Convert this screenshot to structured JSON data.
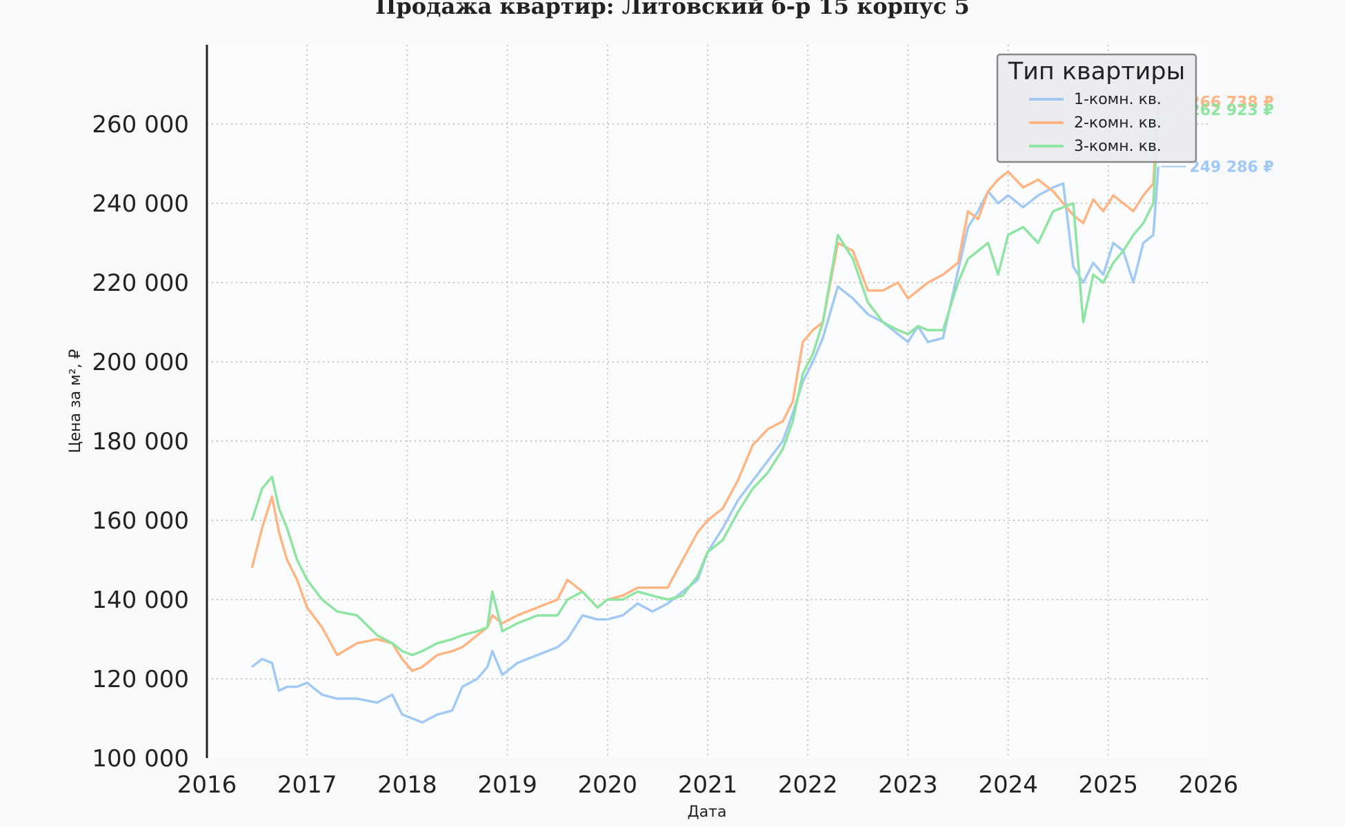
{
  "chart_data": {
    "type": "line",
    "title": "Продажа квартир: Литовский б-р 15 корпус 5",
    "xlabel": "Дата",
    "ylabel": "Цена за м², ₽",
    "xlim": [
      2016,
      2026
    ],
    "ylim": [
      100000,
      280000
    ],
    "x_ticks": [
      "2016",
      "2017",
      "2018",
      "2019",
      "2020",
      "2021",
      "2022",
      "2023",
      "2024",
      "2025",
      "2026"
    ],
    "y_ticks": [
      "100 000",
      "120 000",
      "140 000",
      "160 000",
      "180 000",
      "200 000",
      "220 000",
      "240 000",
      "260 000"
    ],
    "grid": true,
    "legend": {
      "title": "Тип квартиры",
      "placement": "top-right"
    },
    "series": [
      {
        "name": "1-комн. кв.",
        "color": "#a1c9f4",
        "end_label": "249 286 ₽",
        "x": [
          2016.45,
          2016.55,
          2016.65,
          2016.72,
          2016.8,
          2016.9,
          2017.0,
          2017.15,
          2017.3,
          2017.5,
          2017.7,
          2017.85,
          2017.95,
          2018.05,
          2018.15,
          2018.3,
          2018.45,
          2018.55,
          2018.7,
          2018.8,
          2018.85,
          2018.95,
          2019.1,
          2019.3,
          2019.5,
          2019.6,
          2019.75,
          2019.9,
          2020.0,
          2020.15,
          2020.3,
          2020.45,
          2020.6,
          2020.75,
          2020.9,
          2021.0,
          2021.15,
          2021.3,
          2021.45,
          2021.6,
          2021.75,
          2021.85,
          2021.95,
          2022.05,
          2022.15,
          2022.3,
          2022.45,
          2022.6,
          2022.75,
          2022.9,
          2023.0,
          2023.1,
          2023.2,
          2023.35,
          2023.5,
          2023.6,
          2023.7,
          2023.8,
          2023.9,
          2024.0,
          2024.15,
          2024.3,
          2024.45,
          2024.55,
          2024.65,
          2024.75,
          2024.85,
          2024.95,
          2025.05,
          2025.15,
          2025.25,
          2025.35,
          2025.45,
          2025.5
        ],
        "y": [
          123000,
          125000,
          124000,
          117000,
          118000,
          118000,
          119000,
          116000,
          115000,
          115000,
          114000,
          116000,
          111000,
          110000,
          109000,
          111000,
          112000,
          118000,
          120000,
          123000,
          127000,
          121000,
          124000,
          126000,
          128000,
          130000,
          136000,
          135000,
          135000,
          136000,
          139000,
          137000,
          139000,
          142000,
          145000,
          152000,
          158000,
          165000,
          170000,
          175000,
          180000,
          187000,
          195000,
          200000,
          206000,
          219000,
          216000,
          212000,
          210000,
          207000,
          205000,
          209000,
          205000,
          206000,
          223000,
          234000,
          238000,
          243000,
          240000,
          242000,
          239000,
          242000,
          244000,
          245000,
          224000,
          220000,
          225000,
          222000,
          230000,
          228000,
          220000,
          230000,
          232000,
          249286
        ]
      },
      {
        "name": "2-комн. кв.",
        "color": "#ffb482",
        "end_label": "266 738 ₽",
        "x": [
          2016.45,
          2016.55,
          2016.65,
          2016.72,
          2016.8,
          2016.9,
          2017.0,
          2017.15,
          2017.3,
          2017.5,
          2017.7,
          2017.85,
          2017.95,
          2018.05,
          2018.15,
          2018.3,
          2018.45,
          2018.55,
          2018.7,
          2018.8,
          2018.85,
          2018.95,
          2019.1,
          2019.3,
          2019.5,
          2019.6,
          2019.75,
          2019.9,
          2020.0,
          2020.15,
          2020.3,
          2020.45,
          2020.6,
          2020.75,
          2020.9,
          2021.0,
          2021.15,
          2021.3,
          2021.45,
          2021.6,
          2021.75,
          2021.85,
          2021.95,
          2022.05,
          2022.15,
          2022.3,
          2022.45,
          2022.6,
          2022.75,
          2022.9,
          2023.0,
          2023.1,
          2023.2,
          2023.35,
          2023.5,
          2023.6,
          2023.7,
          2023.8,
          2023.9,
          2024.0,
          2024.15,
          2024.3,
          2024.45,
          2024.55,
          2024.65,
          2024.75,
          2024.85,
          2024.95,
          2025.05,
          2025.15,
          2025.25,
          2025.35,
          2025.45,
          2025.5
        ],
        "y": [
          148000,
          158000,
          166000,
          157000,
          150000,
          145000,
          138000,
          133000,
          126000,
          129000,
          130000,
          129000,
          125000,
          122000,
          123000,
          126000,
          127000,
          128000,
          131000,
          133000,
          136000,
          134000,
          136000,
          138000,
          140000,
          145000,
          142000,
          138000,
          140000,
          141000,
          143000,
          143000,
          143000,
          150000,
          157000,
          160000,
          163000,
          170000,
          179000,
          183000,
          185000,
          190000,
          205000,
          208000,
          210000,
          230000,
          228000,
          218000,
          218000,
          220000,
          216000,
          218000,
          220000,
          222000,
          225000,
          238000,
          236000,
          243000,
          246000,
          248000,
          244000,
          246000,
          243000,
          240000,
          237000,
          235000,
          241000,
          238000,
          242000,
          240000,
          238000,
          242000,
          245000,
          266738
        ]
      },
      {
        "name": "3-комн. кв.",
        "color": "#8de5a1",
        "end_label": "262 923 ₽",
        "x": [
          2016.45,
          2016.55,
          2016.65,
          2016.72,
          2016.8,
          2016.9,
          2017.0,
          2017.15,
          2017.3,
          2017.5,
          2017.7,
          2017.85,
          2017.95,
          2018.05,
          2018.15,
          2018.3,
          2018.45,
          2018.55,
          2018.7,
          2018.8,
          2018.85,
          2018.95,
          2019.1,
          2019.3,
          2019.5,
          2019.6,
          2019.75,
          2019.9,
          2020.0,
          2020.15,
          2020.3,
          2020.45,
          2020.6,
          2020.75,
          2020.9,
          2021.0,
          2021.15,
          2021.3,
          2021.45,
          2021.6,
          2021.75,
          2021.85,
          2021.95,
          2022.05,
          2022.15,
          2022.3,
          2022.45,
          2022.6,
          2022.75,
          2022.9,
          2023.0,
          2023.1,
          2023.2,
          2023.35,
          2023.5,
          2023.6,
          2023.7,
          2023.8,
          2023.9,
          2024.0,
          2024.15,
          2024.3,
          2024.45,
          2024.55,
          2024.65,
          2024.75,
          2024.85,
          2024.95,
          2025.05,
          2025.15,
          2025.25,
          2025.35,
          2025.45,
          2025.5
        ],
        "y": [
          160000,
          168000,
          171000,
          163000,
          158000,
          150000,
          145000,
          140000,
          137000,
          136000,
          131000,
          129000,
          127000,
          126000,
          127000,
          129000,
          130000,
          131000,
          132000,
          133000,
          142000,
          132000,
          134000,
          136000,
          136000,
          140000,
          142000,
          138000,
          140000,
          140000,
          142000,
          141000,
          140000,
          141000,
          146000,
          152000,
          155000,
          162000,
          168000,
          172000,
          178000,
          185000,
          197000,
          202000,
          210000,
          232000,
          226000,
          215000,
          210000,
          208000,
          207000,
          209000,
          208000,
          208000,
          220000,
          226000,
          228000,
          230000,
          222000,
          232000,
          234000,
          230000,
          238000,
          239000,
          240000,
          210000,
          222000,
          220000,
          225000,
          228000,
          232000,
          235000,
          240000,
          262923
        ]
      }
    ]
  }
}
